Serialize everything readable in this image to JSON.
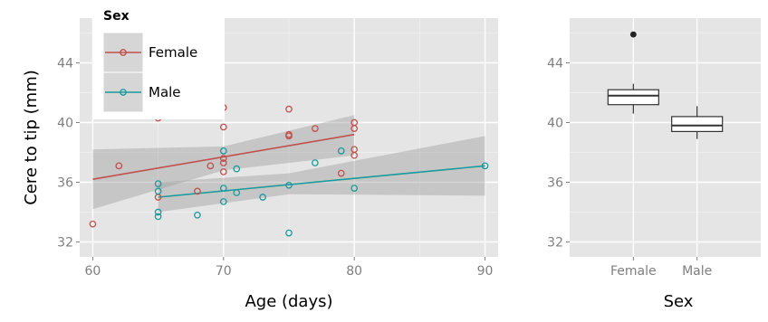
{
  "chart_data": [
    {
      "type": "scatter",
      "xlabel": "Age (days)",
      "ylabel": "Cere to tip (mm)",
      "xlim": [
        59,
        91
      ],
      "ylim": [
        31,
        47
      ],
      "x_ticks": [
        60,
        70,
        80,
        90
      ],
      "y_ticks": [
        32,
        36,
        40,
        44
      ],
      "grid": true,
      "legend": {
        "title": "Sex",
        "placement": "top-left",
        "entries": [
          {
            "label": "Female",
            "color": "#c0504d"
          },
          {
            "label": "Male",
            "color": "#1a9a9a"
          }
        ]
      },
      "series": [
        {
          "name": "Female",
          "color": "#c0504d",
          "points": [
            [
              60,
              33.2
            ],
            [
              62,
              37.1
            ],
            [
              65,
              35.0
            ],
            [
              65,
              40.3
            ],
            [
              68,
              35.4
            ],
            [
              69,
              37.1
            ],
            [
              70,
              41.0
            ],
            [
              70,
              39.7
            ],
            [
              70,
              37.6
            ],
            [
              70,
              37.3
            ],
            [
              70,
              36.7
            ],
            [
              75,
              40.9
            ],
            [
              75,
              39.2
            ],
            [
              75,
              39.1
            ],
            [
              77,
              39.6
            ],
            [
              79,
              36.6
            ],
            [
              80,
              40.0
            ],
            [
              80,
              39.6
            ],
            [
              80,
              38.2
            ],
            [
              80,
              37.8
            ]
          ],
          "fit": {
            "x": [
              60,
              80
            ],
            "y": [
              36.2,
              39.2
            ]
          },
          "ci": {
            "x": [
              60,
              70,
              80
            ],
            "upper": [
              38.2,
              38.4,
              40.5
            ],
            "lower": [
              34.2,
              36.8,
              37.8
            ]
          }
        },
        {
          "name": "Male",
          "color": "#1a9a9a",
          "points": [
            [
              65,
              35.9
            ],
            [
              65,
              35.4
            ],
            [
              65,
              34.0
            ],
            [
              65,
              33.7
            ],
            [
              68,
              33.8
            ],
            [
              70,
              38.1
            ],
            [
              70,
              35.6
            ],
            [
              70,
              34.7
            ],
            [
              71,
              36.9
            ],
            [
              71,
              35.3
            ],
            [
              73,
              35.0
            ],
            [
              75,
              35.8
            ],
            [
              75,
              32.6
            ],
            [
              77,
              37.3
            ],
            [
              79,
              38.1
            ],
            [
              80,
              35.6
            ],
            [
              90,
              37.1
            ]
          ],
          "fit": {
            "x": [
              65,
              90
            ],
            "y": [
              35.0,
              37.1
            ]
          },
          "ci": {
            "x": [
              65,
              75,
              90
            ],
            "upper": [
              36.0,
              36.6,
              39.1
            ],
            "lower": [
              34.0,
              35.2,
              35.1
            ]
          }
        }
      ]
    },
    {
      "type": "box",
      "xlabel": "Sex",
      "ylabel": "",
      "categories": [
        "Female",
        "Male"
      ],
      "ylim": [
        31,
        47
      ],
      "y_ticks": [
        32,
        36,
        40,
        44
      ],
      "grid": true,
      "boxes": [
        {
          "category": "Female",
          "min": 40.6,
          "q1": 41.2,
          "median": 41.8,
          "q3": 42.2,
          "max": 42.6,
          "outliers": [
            45.9
          ]
        },
        {
          "category": "Male",
          "min": 38.9,
          "q1": 39.4,
          "median": 39.8,
          "q3": 40.4,
          "max": 41.1,
          "outliers": []
        }
      ]
    }
  ]
}
